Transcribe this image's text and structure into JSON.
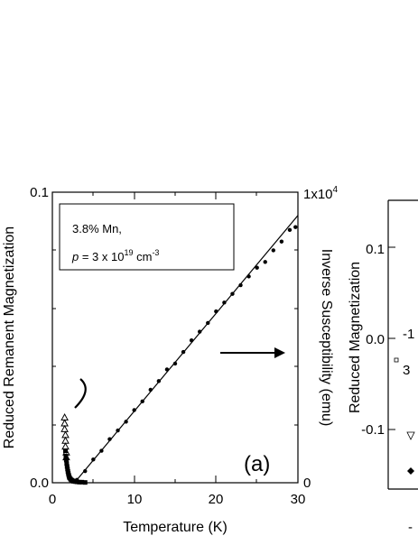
{
  "chart_data": [
    {
      "panel": "(a)",
      "type": "scatter",
      "xlabel": "Temperature (K)",
      "ylabel_left": "Reduced Remanent Magnetization",
      "ylabel_right": "Inverse Susceptibility  (emu)",
      "xlim": [
        0,
        30
      ],
      "ylim_left": [
        0,
        0.1
      ],
      "ylim_right": [
        0,
        10000
      ],
      "x_ticks": [
        "0",
        "10",
        "20",
        "30"
      ],
      "y_left_ticks": [
        "0.0",
        "0.1"
      ],
      "y_right_ticks": [
        "0",
        "1x10^4"
      ],
      "right_top_tick": {
        "base": "1x10",
        "exp": "4"
      },
      "annotation": {
        "line1": "3.8% Mn,",
        "line2_p": "p",
        "line2_mid": " = 3 x 10",
        "line2_exp1": "19",
        "line2_unit": " cm",
        "line2_exp2": "-3"
      },
      "panel_label": "(a)",
      "grid": false,
      "series": [
        {
          "marker": "open-triangle",
          "axis": "left",
          "x": [
            1.5,
            1.5,
            1.5,
            1.6,
            1.6,
            1.6,
            1.7,
            1.7
          ],
          "y": [
            0.0225,
            0.0205,
            0.0185,
            0.0165,
            0.0145,
            0.0125,
            0.0105,
            0.0088
          ]
        },
        {
          "marker": "filled-square",
          "axis": "left",
          "x": [
            1.6,
            1.65,
            1.7,
            1.75,
            1.8,
            1.85,
            1.9,
            1.95,
            2.0,
            2.05,
            2.1,
            2.2,
            2.3,
            2.4,
            2.5,
            2.6,
            2.8,
            3.0,
            3.3,
            3.6,
            4.0
          ],
          "y": [
            0.011,
            0.0092,
            0.0078,
            0.0066,
            0.0056,
            0.0047,
            0.0039,
            0.0032,
            0.0026,
            0.0021,
            0.0017,
            0.0013,
            0.001,
            0.0008,
            0.0006,
            0.0005,
            0.0004,
            0.0003,
            0.0002,
            0.0002,
            0.0001
          ]
        },
        {
          "marker": "filled-circle",
          "axis": "right",
          "x": [
            3.0,
            4.0,
            5.0,
            6.0,
            7.0,
            8.0,
            9.0,
            10.0,
            11.0,
            12.0,
            13.0,
            14.0,
            15.0,
            16.0,
            17.0,
            18.0,
            19.0,
            20.0,
            21.0,
            22.0,
            23.0,
            24.0,
            25.0,
            26.0,
            27.0,
            28.0,
            29.0,
            29.7
          ],
          "y": [
            100,
            400,
            800,
            1100,
            1500,
            1800,
            2100,
            2500,
            2800,
            3200,
            3500,
            3900,
            4100,
            4500,
            4900,
            5200,
            5500,
            5900,
            6200,
            6500,
            6800,
            7100,
            7400,
            7600,
            8000,
            8300,
            8700,
            8800
          ]
        },
        {
          "marker": "line",
          "axis": "right",
          "x": [
            2.7,
            30
          ],
          "y": [
            0,
            9200
          ]
        }
      ]
    },
    {
      "panel": "(b)",
      "type": "scatter",
      "ylabel": "Reduced Magnetization",
      "y_ticks": [
        "0.1",
        "0.0",
        "-0.1"
      ],
      "ylim": [
        -0.15,
        0.15
      ],
      "visible_text": [
        "-1",
        "3",
        "-"
      ]
    }
  ]
}
